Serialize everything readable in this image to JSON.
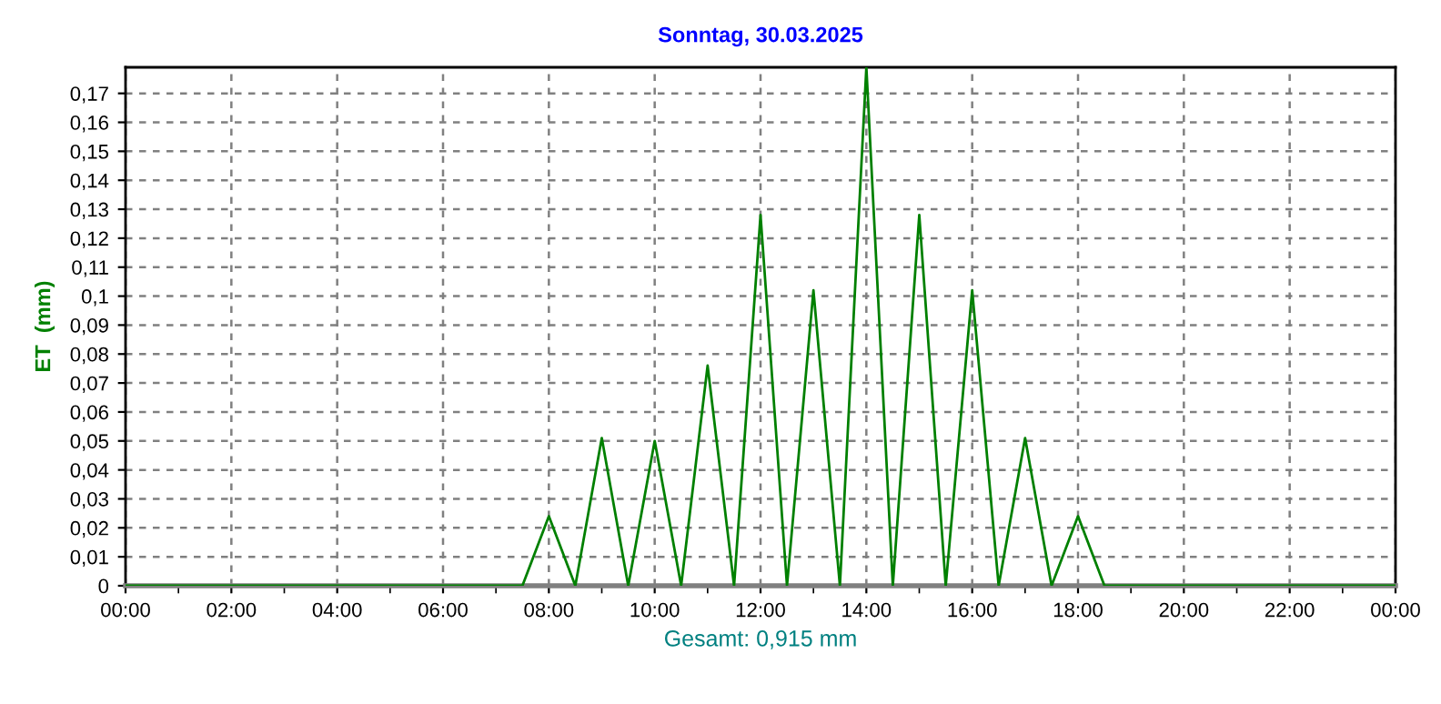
{
  "chart_data": {
    "type": "line",
    "title": "Sonntag, 30.03.2025",
    "ylabel": "ET  (mm)",
    "annotations": [
      "Gesamt: 0,915 mm"
    ],
    "x": [
      0,
      7.5,
      8,
      8.5,
      9,
      9.5,
      10,
      10.5,
      11,
      11.5,
      12,
      12.5,
      13,
      13.5,
      14,
      14.5,
      15,
      15.5,
      16,
      16.5,
      17,
      17.5,
      18,
      18.5,
      24
    ],
    "series": [
      {
        "color": "#008000",
        "values": [
          0,
          0,
          0.024,
          0,
          0.051,
          0,
          0.05,
          0,
          0.076,
          0,
          0.128,
          0,
          0.102,
          0,
          0.179,
          0,
          0.128,
          0,
          0.102,
          0,
          0.051,
          0,
          0.024,
          0,
          0
        ]
      }
    ],
    "xlim": [
      0,
      24
    ],
    "ylim": [
      0,
      0.179
    ],
    "xticks": [
      {
        "value": 0,
        "label": "00:00"
      },
      {
        "value": 1,
        "label": null
      },
      {
        "value": 2,
        "label": "02:00"
      },
      {
        "value": 3,
        "label": null
      },
      {
        "value": 4,
        "label": "04:00"
      },
      {
        "value": 5,
        "label": null
      },
      {
        "value": 6,
        "label": "06:00"
      },
      {
        "value": 7,
        "label": null
      },
      {
        "value": 8,
        "label": "08:00"
      },
      {
        "value": 9,
        "label": null
      },
      {
        "value": 10,
        "label": "10:00"
      },
      {
        "value": 11,
        "label": null
      },
      {
        "value": 12,
        "label": "12:00"
      },
      {
        "value": 13,
        "label": null
      },
      {
        "value": 14,
        "label": "14:00"
      },
      {
        "value": 15,
        "label": null
      },
      {
        "value": 16,
        "label": "16:00"
      },
      {
        "value": 17,
        "label": null
      },
      {
        "value": 18,
        "label": "18:00"
      },
      {
        "value": 19,
        "label": null
      },
      {
        "value": 20,
        "label": "20:00"
      },
      {
        "value": 21,
        "label": null
      },
      {
        "value": 22,
        "label": "22:00"
      },
      {
        "value": 23,
        "label": null
      },
      {
        "value": 24,
        "label": "00:00"
      }
    ],
    "yticks": [
      0,
      {
        "value": 0.01,
        "label": "0,01"
      },
      {
        "value": 0.02,
        "label": "0,02"
      },
      {
        "value": 0.03,
        "label": "0,03"
      },
      {
        "value": 0.04,
        "label": "0,04"
      },
      {
        "value": 0.05,
        "label": "0,05"
      },
      {
        "value": 0.06,
        "label": "0,06"
      },
      {
        "value": 0.07,
        "label": "0,07"
      },
      {
        "value": 0.08,
        "label": "0,08"
      },
      {
        "value": 0.09,
        "label": "0,09"
      },
      {
        "value": 0.1,
        "label": "0,1"
      },
      {
        "value": 0.11,
        "label": "0,11"
      },
      {
        "value": 0.12,
        "label": "0,12"
      },
      {
        "value": 0.13,
        "label": "0,13"
      },
      {
        "value": 0.14,
        "label": "0,14"
      },
      {
        "value": 0.15,
        "label": "0,15"
      },
      {
        "value": 0.16,
        "label": "0,16"
      },
      {
        "value": 0.17,
        "label": "0,17"
      }
    ],
    "grid": true,
    "marker": "none",
    "line_style": "solid"
  }
}
